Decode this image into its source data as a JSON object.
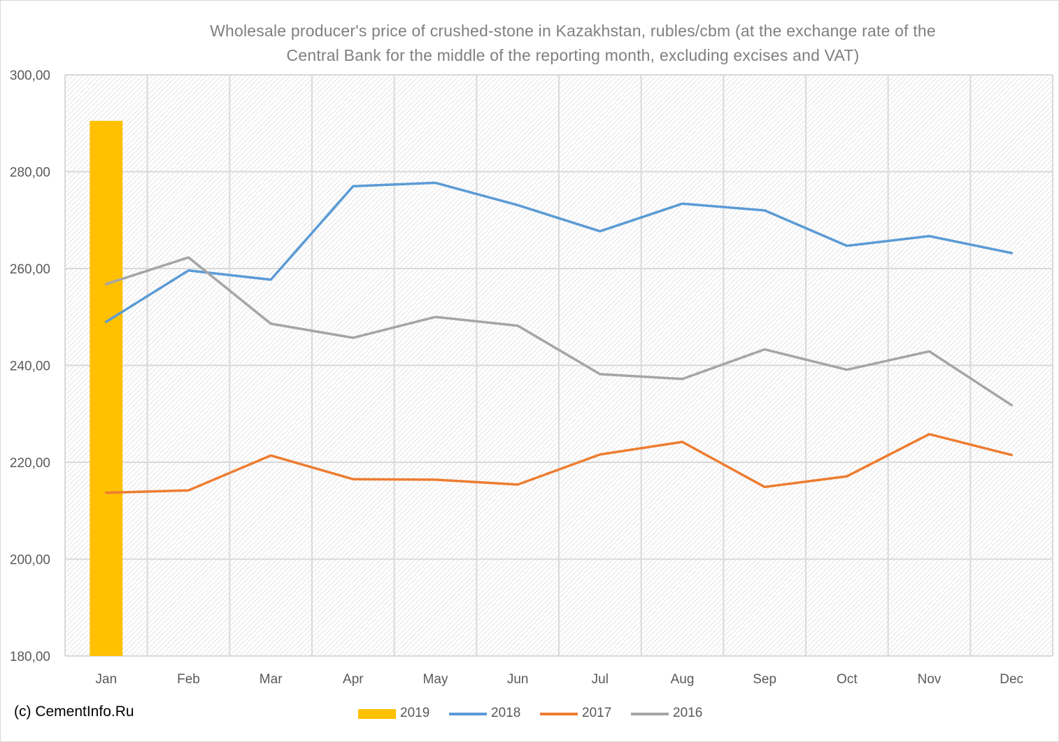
{
  "chart_data": {
    "type": "bar+line",
    "title": "Wholesale producer's price of crushed-stone in Kazakhstan, rubles/cbm (at the exchange rate of the Central Bank for the middle of the reporting month, excluding excises and VAT)",
    "title_lines": [
      "Wholesale producer's price of crushed-stone in Kazakhstan, rubles/cbm (at the exchange rate of the",
      "Central Bank for the middle of the reporting month, excluding excises and VAT)"
    ],
    "categories": [
      "Jan",
      "Feb",
      "Mar",
      "Apr",
      "May",
      "Jun",
      "Jul",
      "Aug",
      "Sep",
      "Oct",
      "Nov",
      "Dec"
    ],
    "ylim": [
      180,
      300
    ],
    "yticks": [
      180,
      200,
      220,
      240,
      260,
      280,
      300
    ],
    "ytick_labels": [
      "180,00",
      "200,00",
      "220,00",
      "240,00",
      "260,00",
      "280,00",
      "300,00"
    ],
    "grid": true,
    "legend_position": "bottom",
    "series": [
      {
        "name": "2019",
        "type": "bar",
        "color": "#ffc000",
        "values": [
          290.5,
          null,
          null,
          null,
          null,
          null,
          null,
          null,
          null,
          null,
          null,
          null
        ]
      },
      {
        "name": "2018",
        "type": "line",
        "color": "#5b9bd5",
        "values": [
          249.0,
          259.6,
          257.7,
          277.0,
          277.7,
          273.1,
          267.7,
          273.4,
          272.0,
          264.7,
          266.7,
          263.2
        ]
      },
      {
        "name": "2017",
        "type": "line",
        "color": "#ed7d31",
        "values": [
          213.7,
          214.2,
          221.4,
          216.5,
          216.4,
          215.4,
          221.6,
          224.2,
          214.9,
          217.1,
          225.8,
          221.5
        ]
      },
      {
        "name": "2016",
        "type": "line",
        "color": "#a5a5a5",
        "values": [
          256.8,
          262.3,
          248.6,
          245.7,
          250.0,
          248.2,
          238.2,
          237.2,
          243.3,
          239.1,
          242.9,
          231.8
        ]
      }
    ]
  },
  "copyright": "(c) CementInfo.Ru"
}
